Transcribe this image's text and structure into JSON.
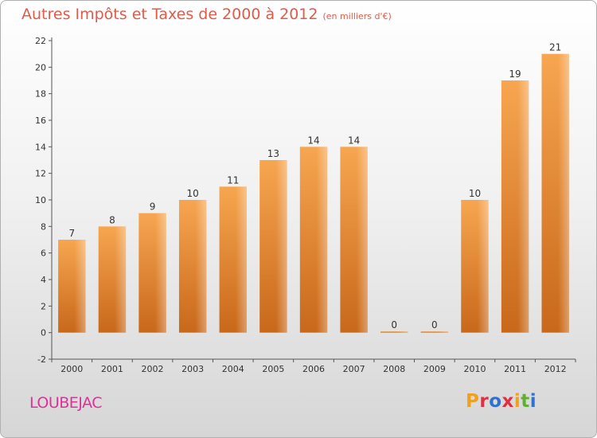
{
  "header": {
    "title": "Autres Impôts et Taxes de 2000 à 2012",
    "unit": "(en milliers d'€)"
  },
  "commune": "LOUBEJAC",
  "logo": {
    "text": "Proxiti",
    "letter_colors": [
      "#f0a020",
      "#e03040",
      "#3070d0",
      "#e03040",
      "#f0a020",
      "#60b030",
      "#3070d0"
    ]
  },
  "colors": {
    "bar_top": "#f7a650",
    "bar_bottom": "#c8681a",
    "title": "#e05a4a",
    "commune": "#e0309a"
  },
  "chart_data": {
    "type": "bar",
    "categories": [
      "2000",
      "2001",
      "2002",
      "2003",
      "2004",
      "2005",
      "2006",
      "2007",
      "2008",
      "2009",
      "2010",
      "2011",
      "2012"
    ],
    "values": [
      7,
      8,
      9,
      10,
      11,
      13,
      14,
      14,
      0,
      0,
      10,
      19,
      21
    ],
    "data_labels": [
      "7",
      "8",
      "9",
      "10",
      "11",
      "13",
      "14",
      "14",
      "0",
      "0",
      "10",
      "19",
      "21"
    ],
    "title": "Autres Impôts et Taxes de 2000 à 2012",
    "xlabel": "",
    "ylabel": "",
    "ylim": [
      -2,
      22
    ],
    "yticks": [
      -2,
      0,
      2,
      4,
      6,
      8,
      10,
      12,
      14,
      16,
      18,
      20,
      22
    ],
    "grid": false
  }
}
